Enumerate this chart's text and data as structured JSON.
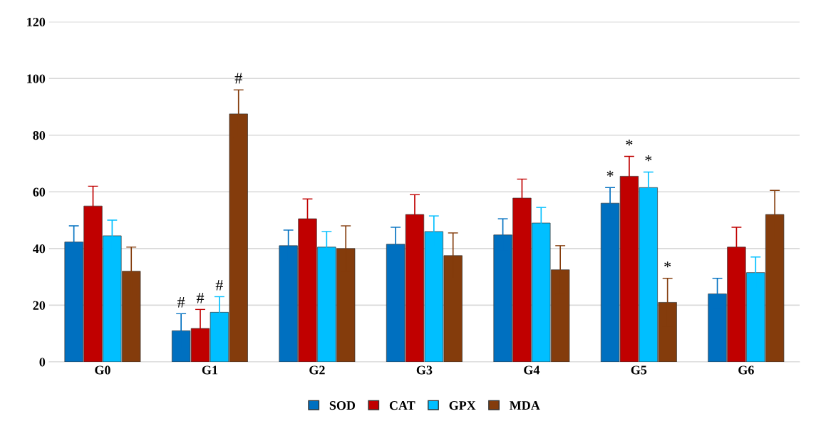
{
  "chart_data": {
    "type": "bar",
    "categories": [
      "G0",
      "G1",
      "G2",
      "G3",
      "G4",
      "G5",
      "G6"
    ],
    "ylim": [
      0,
      120
    ],
    "yticks": [
      0,
      20,
      40,
      60,
      80,
      100,
      120
    ],
    "grid": "y",
    "legend": "bottom",
    "series": [
      {
        "name": "SOD",
        "color": "#0070c0",
        "values": [
          42.3,
          11,
          41,
          41.5,
          44.8,
          56,
          24
        ],
        "errors": [
          5.7,
          6,
          5.5,
          6,
          5.7,
          5.5,
          5.5
        ],
        "value_labels": [
          null,
          "#",
          null,
          null,
          null,
          "*",
          null
        ]
      },
      {
        "name": "CAT",
        "color": "#c00000",
        "values": [
          55,
          11.8,
          50.5,
          52,
          57.8,
          65.5,
          40.5
        ],
        "errors": [
          7,
          6.7,
          7,
          7,
          6.7,
          7,
          7
        ],
        "value_labels": [
          null,
          "#",
          null,
          null,
          null,
          "*",
          null
        ]
      },
      {
        "name": "GPX",
        "color": "#00bfff",
        "values": [
          44.5,
          17.5,
          40.5,
          46,
          49,
          61.5,
          31.5
        ],
        "errors": [
          5.5,
          5.5,
          5.5,
          5.5,
          5.5,
          5.5,
          5.5
        ],
        "value_labels": [
          null,
          "#",
          null,
          null,
          null,
          "*",
          null
        ]
      },
      {
        "name": "MDA",
        "color": "#843c0c",
        "values": [
          32,
          87.5,
          40,
          37.5,
          32.5,
          21,
          52
        ],
        "errors": [
          8.5,
          8.5,
          8,
          8,
          8.5,
          8.5,
          8.5
        ],
        "value_labels": [
          null,
          "#",
          null,
          null,
          null,
          "*",
          null
        ]
      }
    ]
  }
}
